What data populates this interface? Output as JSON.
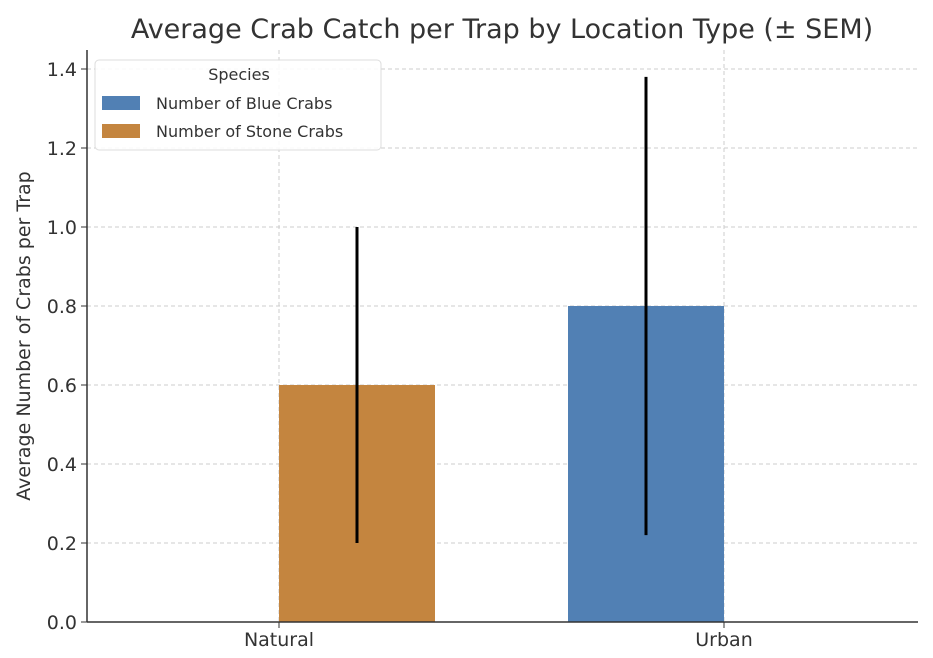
{
  "chart_data": {
    "type": "bar",
    "title": "Average Crab Catch per Trap by Location Type (± SEM)",
    "xlabel": "",
    "ylabel": "Average Number of Crabs per Trap",
    "categories": [
      "Natural",
      "Urban"
    ],
    "series": [
      {
        "name": "Number of Blue Crabs",
        "color": "#5180b4",
        "values": [
          0,
          0.8
        ],
        "errors": [
          null,
          0.58
        ]
      },
      {
        "name": "Number of Stone Crabs",
        "color": "#c4853f",
        "values": [
          0.6,
          0
        ],
        "errors": [
          0.4,
          null
        ]
      }
    ],
    "ylim": [
      0,
      1.45
    ],
    "yticks": [
      "0.0",
      "0.2",
      "0.4",
      "0.6",
      "0.8",
      "1.0",
      "1.2",
      "1.4"
    ],
    "grid": true,
    "legend": {
      "title": "Species",
      "placement": "top-left"
    }
  }
}
